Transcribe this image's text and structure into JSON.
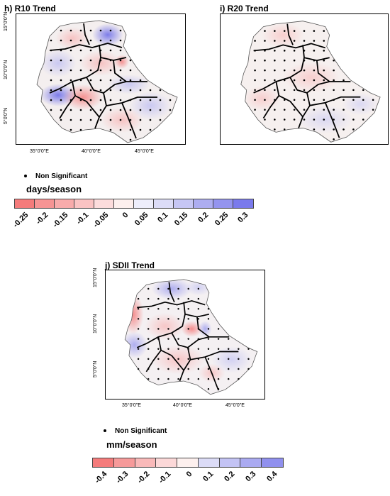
{
  "panels": [
    {
      "id": "r10",
      "title": "h) R10 Trend",
      "lat_labels": [
        "15°0'0\"N",
        "10°0'0\"N",
        "5°0'0\"N"
      ],
      "lon_labels": [
        "35°0'0\"E",
        "40°0'0\"E",
        "45°0'0\"E"
      ]
    },
    {
      "id": "r20",
      "title": "i) R20 Trend",
      "lat_labels": [],
      "lon_labels": []
    },
    {
      "id": "sdii",
      "title": "j) SDII Trend",
      "lat_labels": [
        "15°0'0\"N",
        "10°0'0\"N",
        "5°0'0\"N"
      ],
      "lon_labels": [
        "35°0'0\"E",
        "40°0'0\"E",
        "45°0'0\"E"
      ]
    }
  ],
  "legend_top": {
    "ns_label": "Non Significant",
    "unit": "days/season",
    "ticks": [
      "-0.25",
      "-0.2",
      "-0.15",
      "-0.1",
      "-0.05",
      "0",
      "0.05",
      "0.1",
      "0.15",
      "0.2",
      "0.25",
      "0.3"
    ],
    "colors": [
      "#f47b7b",
      "#f69494",
      "#f8abab",
      "#fac3c3",
      "#fcdcdc",
      "#fdf0ee",
      "#eeeefb",
      "#dcdcf7",
      "#c6c6f4",
      "#adadf1",
      "#9494ef",
      "#7a7aec"
    ]
  },
  "legend_bottom": {
    "ns_label": "Non Significant",
    "unit": "mm/season",
    "ticks": [
      "-0.4",
      "-0.3",
      "-0.2",
      "-0.1",
      "0",
      "0.1",
      "0.2",
      "0.3",
      "0.4"
    ],
    "colors": [
      "#f47b7b",
      "#f69a9a",
      "#f9b9b9",
      "#fcd8d8",
      "#fdf0ee",
      "#dcdcf7",
      "#c3c3f4",
      "#aaaaf1",
      "#9090ee"
    ]
  },
  "map_colors": {
    "blue": "#7f7fec",
    "red": "#f47b7b",
    "border": "#000000"
  }
}
